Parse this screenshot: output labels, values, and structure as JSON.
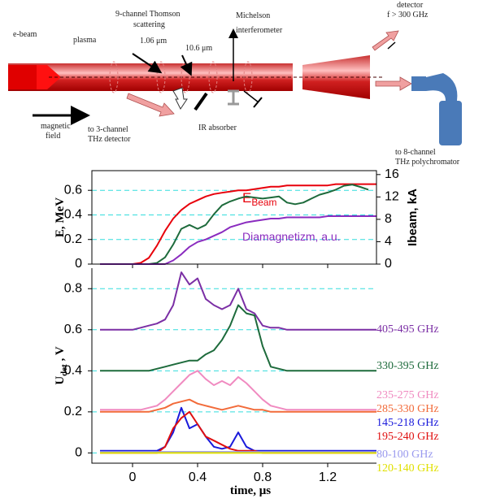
{
  "diagram": {
    "e_beam": "e-beam",
    "plasma": "plasma",
    "thomson": [
      "9-channel Thomson",
      "scattering"
    ],
    "laser1": "1.06 μm",
    "laser2": "10.6 μm",
    "michelson": [
      "Michelson",
      "interferometer"
    ],
    "detector": [
      "detector",
      "f > 300 GHz"
    ],
    "magnetic": [
      "magnetic",
      "field"
    ],
    "to3": [
      "to 3-channel",
      "THz detector"
    ],
    "ir_absorber": "IR absorber",
    "to8": [
      "to 8-channel",
      "THz polychromator"
    ]
  },
  "chart_data": [
    {
      "type": "line",
      "ylabel": "E, MeV",
      "y2label": "Ibeam, kA",
      "x": [
        -0.2,
        -0.15,
        -0.1,
        -0.05,
        0,
        0.05,
        0.1,
        0.15,
        0.2,
        0.25,
        0.3,
        0.35,
        0.4,
        0.45,
        0.5,
        0.55,
        0.6,
        0.65,
        0.7,
        0.75,
        0.8,
        0.85,
        0.9,
        0.95,
        1.0,
        1.05,
        1.1,
        1.15,
        1.2,
        1.25,
        1.3,
        1.35,
        1.4,
        1.45,
        1.5
      ],
      "series": [
        {
          "name": "E",
          "name_sub": "Beam",
          "color": "#e8000b",
          "values": [
            0,
            0,
            0,
            0,
            0,
            0.01,
            0.05,
            0.15,
            0.27,
            0.37,
            0.44,
            0.49,
            0.52,
            0.55,
            0.57,
            0.58,
            0.59,
            0.6,
            0.6,
            0.61,
            0.62,
            0.63,
            0.63,
            0.64,
            0.64,
            0.64,
            0.64,
            0.64,
            0.64,
            0.65,
            0.65,
            0.65,
            0.65,
            0.65,
            0.65
          ]
        },
        {
          "color": "#1e6b3c",
          "axis": "y2",
          "values": [
            0,
            0,
            0,
            0,
            0,
            0,
            0,
            0.2,
            1.2,
            3.5,
            6.3,
            7,
            6.3,
            7,
            8.9,
            10.5,
            11.2,
            11.7,
            12.1,
            11.9,
            11.7,
            11.9,
            12.1,
            11,
            10.7,
            11,
            11.7,
            12.4,
            12.8,
            13.3,
            14,
            14.2,
            13.8,
            13.3,
            null
          ]
        },
        {
          "name": "Diamagnetizm, a.u.",
          "color": "#8a2bbf",
          "values": [
            0,
            0,
            0,
            0,
            0,
            0,
            0,
            0,
            0,
            0.03,
            0.08,
            0.14,
            0.18,
            0.2,
            0.23,
            0.26,
            0.3,
            0.32,
            0.34,
            0.35,
            0.36,
            0.37,
            0.37,
            0.38,
            0.38,
            0.38,
            0.38,
            0.38,
            0.39,
            0.39,
            0.39,
            0.39,
            0.39,
            0.39,
            0.39
          ]
        }
      ],
      "xlim": [
        -0.25,
        1.5
      ],
      "xticks": [
        0,
        0.4,
        0.8,
        1.2
      ],
      "ylim": [
        0,
        0.76
      ],
      "yticks": [
        0,
        0.2,
        0.4,
        0.6
      ],
      "y2lim": [
        0,
        16.7
      ],
      "y2ticks": [
        0,
        4,
        8,
        12,
        16
      ],
      "grid": true
    },
    {
      "type": "line",
      "ylabel": "U",
      "ylabel_sub": "det",
      "ylabel_rest": " , V",
      "xlabel": "time, μs",
      "x": [
        -0.2,
        -0.15,
        -0.1,
        -0.05,
        0,
        0.05,
        0.1,
        0.15,
        0.2,
        0.25,
        0.3,
        0.35,
        0.4,
        0.45,
        0.5,
        0.55,
        0.6,
        0.65,
        0.7,
        0.75,
        0.8,
        0.85,
        0.9,
        0.95,
        1.0,
        1.05,
        1.1,
        1.15,
        1.2,
        1.25,
        1.3,
        1.35,
        1.4,
        1.45,
        1.5
      ],
      "series": [
        {
          "name": "405-495 GHz",
          "color": "#7b2fa5",
          "values": [
            0.6,
            0.6,
            0.6,
            0.6,
            0.6,
            0.61,
            0.62,
            0.63,
            0.65,
            0.72,
            0.88,
            0.82,
            0.85,
            0.75,
            0.72,
            0.7,
            0.72,
            0.8,
            0.7,
            0.68,
            0.62,
            0.61,
            0.61,
            0.6,
            0.6,
            0.6,
            0.6,
            0.6,
            0.6,
            0.6,
            0.6,
            0.6,
            0.6,
            0.6,
            0.6
          ]
        },
        {
          "name": "330-395 GHz",
          "color": "#1e6b3c",
          "values": [
            0.4,
            0.4,
            0.4,
            0.4,
            0.4,
            0.4,
            0.4,
            0.41,
            0.42,
            0.43,
            0.44,
            0.45,
            0.45,
            0.48,
            0.5,
            0.55,
            0.62,
            0.72,
            0.68,
            0.67,
            0.52,
            0.42,
            0.41,
            0.4,
            0.4,
            0.4,
            0.4,
            0.4,
            0.4,
            0.4,
            0.4,
            0.4,
            0.4,
            0.4,
            0.4
          ]
        },
        {
          "name": "235-275 GHz",
          "color": "#f08ac0",
          "values": [
            0.21,
            0.21,
            0.21,
            0.21,
            0.21,
            0.21,
            0.22,
            0.23,
            0.26,
            0.3,
            0.34,
            0.38,
            0.4,
            0.36,
            0.33,
            0.35,
            0.33,
            0.37,
            0.34,
            0.3,
            0.26,
            0.23,
            0.22,
            0.21,
            0.21,
            0.21,
            0.21,
            0.21,
            0.21,
            0.21,
            0.21,
            0.21,
            0.21,
            0.21,
            0.21
          ]
        },
        {
          "name": "285-330 GHz",
          "color": "#f26b3a",
          "values": [
            0.2,
            0.2,
            0.2,
            0.2,
            0.2,
            0.2,
            0.2,
            0.21,
            0.22,
            0.24,
            0.25,
            0.26,
            0.24,
            0.23,
            0.22,
            0.21,
            0.22,
            0.23,
            0.22,
            0.21,
            0.21,
            0.2,
            0.2,
            0.2,
            0.2,
            0.2,
            0.2,
            0.2,
            0.2,
            0.2,
            0.2,
            0.2,
            0.2,
            0.2,
            0.2
          ]
        },
        {
          "name": "145-218 GHz",
          "color": "#1a1adb",
          "values": [
            0.01,
            0.01,
            0.01,
            0.01,
            0.01,
            0.01,
            0.01,
            0.01,
            0.03,
            0.1,
            0.22,
            0.12,
            0.14,
            0.08,
            0.03,
            0.02,
            0.03,
            0.1,
            0.03,
            0.01,
            0.01,
            0.01,
            0.01,
            0.01,
            0.01,
            0.01,
            0.01,
            0.01,
            0.01,
            0.01,
            0.01,
            0.01,
            0.01,
            0.01,
            0.01
          ]
        },
        {
          "name": "195-240 GHz",
          "color": "#e01010",
          "values": [
            0,
            0,
            0,
            0,
            0,
            0,
            0,
            0,
            0.03,
            0.12,
            0.17,
            0.2,
            0.14,
            0.08,
            0.06,
            0.04,
            0.02,
            0.01,
            0.01,
            0.01,
            0,
            0,
            0,
            0,
            0,
            0,
            0,
            0,
            0,
            0,
            0,
            0,
            0,
            0,
            0
          ]
        },
        {
          "name": "80-100 GHz",
          "color": "#9999ee",
          "values": [
            0.005,
            0.005,
            0.005,
            0.005,
            0.005,
            0.005,
            0.005,
            0.005,
            0.005,
            0.005,
            0.005,
            0.005,
            0.005,
            0.005,
            0.005,
            0.005,
            0.005,
            0.005,
            0.005,
            0.005,
            0.005,
            0.005,
            0.005,
            0.005,
            0.005,
            0.005,
            0.005,
            0.005,
            0.005,
            0.005,
            0.005,
            0.005,
            0.005,
            0.005,
            0.005
          ]
        },
        {
          "name": "120-140 GHz",
          "color": "#e0e000",
          "values": [
            0,
            0,
            0,
            0,
            0,
            0,
            0,
            0,
            0,
            0,
            0,
            0,
            0,
            0,
            0,
            0,
            0,
            0,
            0,
            0,
            0,
            0,
            0,
            0,
            0,
            0,
            0,
            0,
            0,
            0,
            0,
            0,
            0,
            0,
            0
          ]
        }
      ],
      "xlim": [
        -0.25,
        1.5
      ],
      "xticks": [
        0,
        0.4,
        0.8,
        1.2
      ],
      "ylim": [
        -0.05,
        0.9
      ],
      "yticks": [
        0,
        0.2,
        0.4,
        0.6,
        0.8
      ],
      "grid": true
    }
  ]
}
